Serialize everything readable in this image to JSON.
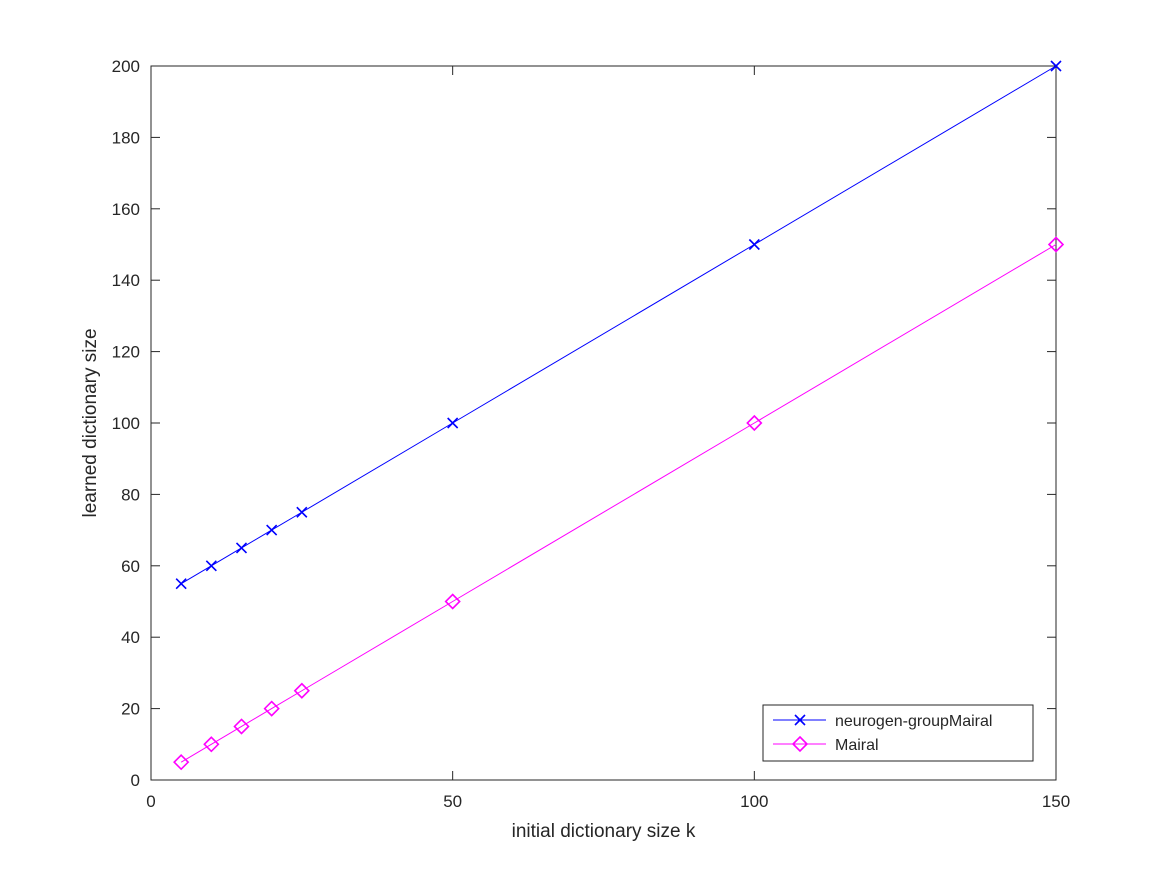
{
  "chart_data": {
    "type": "line",
    "title": "",
    "xlabel": "initial dictionary size k",
    "ylabel": "learned dictionary size",
    "xlim": [
      0,
      150
    ],
    "ylim": [
      0,
      200
    ],
    "xticks": [
      0,
      50,
      100,
      150
    ],
    "yticks": [
      0,
      20,
      40,
      60,
      80,
      100,
      120,
      140,
      160,
      180,
      200
    ],
    "x": [
      5,
      10,
      15,
      20,
      25,
      50,
      100,
      150
    ],
    "grid": false,
    "legend_position": "bottom-right",
    "series": [
      {
        "name": "neurogen-groupMairal",
        "values": [
          55,
          60,
          65,
          70,
          75,
          100,
          150,
          200
        ],
        "color": "#0000ff",
        "marker": "x"
      },
      {
        "name": "Mairal",
        "values": [
          5,
          10,
          15,
          20,
          25,
          50,
          100,
          150
        ],
        "color": "#ff00ff",
        "marker": "diamond"
      }
    ]
  }
}
